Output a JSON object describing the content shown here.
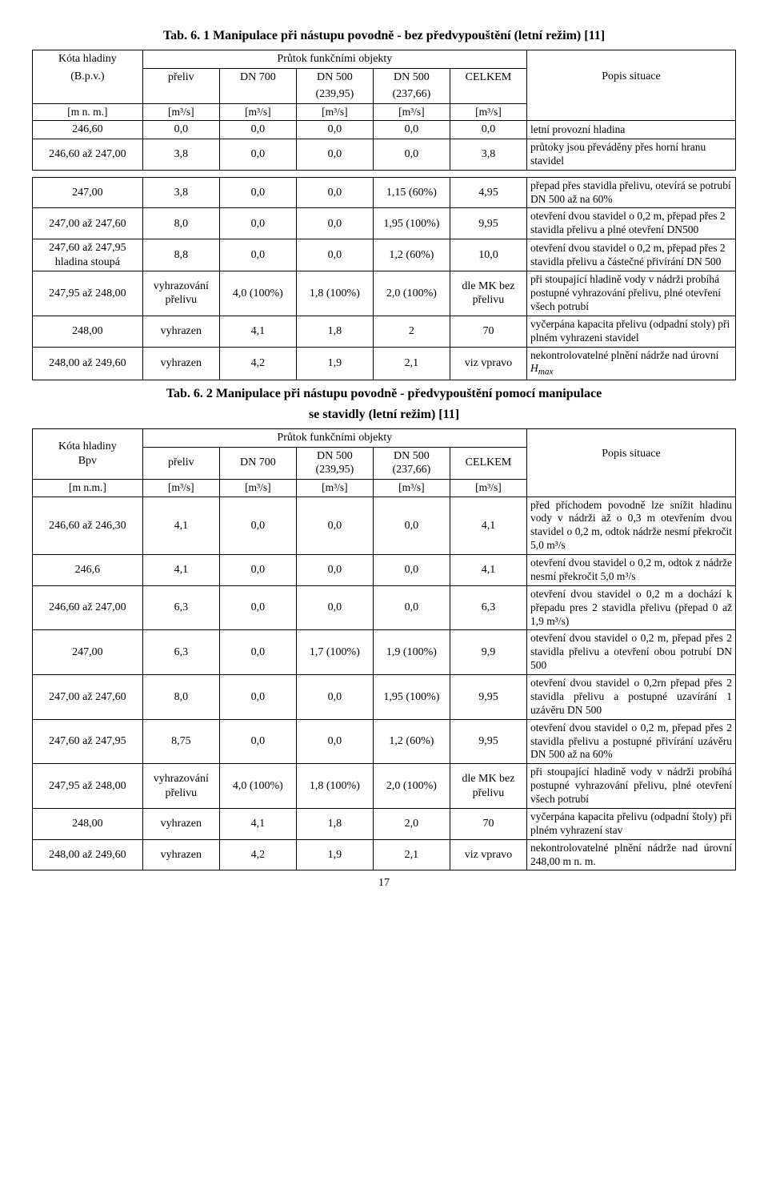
{
  "table1": {
    "title": "Tab. 6. 1 Manipulace při nástupu povodně - bez předvypouštění (letní režim) [11]",
    "header": {
      "kota_l1": "Kóta hladiny",
      "kota_l2": "(B.p.v.)",
      "flow_header": "Průtok funkčními objekty",
      "cols": [
        "přeliv",
        "DN 700",
        "DN 500",
        "DN 500",
        "CELKEM"
      ],
      "sub": [
        "",
        "",
        "(239,95)",
        "(237,66)",
        ""
      ],
      "popis": "Popis situace",
      "units_left": "[m n. m.]",
      "units": [
        "[m³/s]",
        "[m³/s]",
        "[m³/s]",
        "[m³/s]",
        "[m³/s]"
      ]
    },
    "r1": {
      "k": "246,60",
      "v": [
        "0,0",
        "0,0",
        "0,0",
        "0,0",
        "0,0"
      ],
      "d": "letní provozní hladina"
    },
    "r2": {
      "k": "246,60 až 247,00",
      "v": [
        "3,8",
        "0,0",
        "0,0",
        "0,0",
        "3,8"
      ],
      "d": "průtoky jsou převáděny přes horní hranu stavidel"
    },
    "r3": {
      "k": "247,00",
      "v": [
        "3,8",
        "0,0",
        "0,0",
        "1,15 (60%)",
        "4,95"
      ],
      "d": "přepad přes stavidla přelivu, otevírá se potrubí DN 500 až na 60%"
    },
    "r4": {
      "k": "247,00 až 247,60",
      "v": [
        "8,0",
        "0,0",
        "0,0",
        "1,95 (100%)",
        "9,95"
      ],
      "d": "otevření dvou stavidel o 0,2 m, přepad přes 2 stavidla přelivu a plné otevření DN500"
    },
    "r5": {
      "k": "247,60 až 247,95 hladina stoupá",
      "v": [
        "8,8",
        "0,0",
        "0,0",
        "1,2 (60%)",
        "10,0"
      ],
      "d": "otevření dvou stavidel o 0,2 m, přepad přes 2 stavidla přelivu a částečné přivírání DN 500"
    },
    "r6": {
      "k": "247,95 až 248,00",
      "v": [
        "vyhrazování přelivu",
        "4,0 (100%)",
        "1,8 (100%)",
        "2,0 (100%)",
        "dle MK bez přelivu"
      ],
      "d": "při stoupající hladině vody v nádrži probíhá postupné vyhrazování přelivu, plné otevření všech potrubí"
    },
    "r7": {
      "k": "248,00",
      "v": [
        "vyhrazen",
        "4,1",
        "1,8",
        "2",
        "70"
      ],
      "d": "vyčerpána kapacita přelivu (odpadní stoly) při plném vyhrazeni stavidel"
    },
    "r8": {
      "k": "248,00 až 249,60",
      "v": [
        "vyhrazen",
        "4,2",
        "1,9",
        "2,1",
        "viz vpravo"
      ],
      "d_html": "nekontrolovatelné plnění nádrže nad úrovní <span class='sub'>H<sub>max</sub></span>"
    }
  },
  "table2": {
    "title_l1": "Tab. 6. 2 Manipulace při nástupu povodně - předvypouštění pomocí manipulace",
    "title_l2": "se stavidly (letní režim) [11]",
    "header": {
      "kota_l1": "Kóta hladiny",
      "kota_l2": "Bpv",
      "flow_header": "Průtok funkčními objekty",
      "cols": [
        "přeliv",
        "DN 700",
        "DN 500",
        "DN 500",
        "CELKEM"
      ],
      "sub": [
        "",
        "",
        "(239,95)",
        "(237,66)",
        ""
      ],
      "popis": "Popis situace",
      "units_left": "[m n.m.]",
      "units": [
        "[m³/s]",
        "[m³/s]",
        "[m³/s]",
        "[m³/s]",
        "[m³/s]"
      ]
    },
    "r1": {
      "k": "246,60 až 246,30",
      "v": [
        "4,1",
        "0,0",
        "0,0",
        "0,0",
        "4,1"
      ],
      "d": "před příchodem povodně lze snížit hladinu vody v nádrži až o 0,3 m otevřením dvou stavidel o 0,2 m, odtok nádrže nesmí překročit 5,0 m³/s"
    },
    "r2": {
      "k": "246,6",
      "v": [
        "4,1",
        "0,0",
        "0,0",
        "0,0",
        "4,1"
      ],
      "d": "otevření dvou stavidel o 0,2 m, odtok z nádrže nesmí překročit 5,0 m³/s"
    },
    "r3": {
      "k": "246,60 až 247,00",
      "v": [
        "6,3",
        "0,0",
        "0,0",
        "0,0",
        "6,3"
      ],
      "d": "otevření dvou stavidel o 0,2 m a dochází k přepadu pres 2 stavidla přelivu (přepad 0 až 1,9 m³/s)"
    },
    "r4": {
      "k": "247,00",
      "v": [
        "6,3",
        "0,0",
        "1,7 (100%)",
        "1,9 (100%)",
        "9,9"
      ],
      "d": "otevření dvou stavidel o 0,2 m, přepad přes 2 stavidla přelivu a otevření obou potrubí DN 500"
    },
    "r5": {
      "k": "247,00 až 247,60",
      "v": [
        "8,0",
        "0,0",
        "0,0",
        "1,95 (100%)",
        "9,95"
      ],
      "d": "otevření dvou stavidel o 0,2rn přepad přes 2 stavidla přelivu a postupné uzavírání 1 uzávěru DN 500"
    },
    "r6": {
      "k": "247,60 až 247,95",
      "v": [
        "8,75",
        "0,0",
        "0,0",
        "1,2 (60%)",
        "9,95"
      ],
      "d": "otevření dvou stavidel o 0,2 m, přepad přes 2 stavidla přelivu a postupné přivírání uzávěru DN 500 až na 60%"
    },
    "r7": {
      "k": "247,95 až 248,00",
      "v": [
        "vyhrazování přelivu",
        "4,0 (100%)",
        "1,8 (100%)",
        "2,0 (100%)",
        "dle MK bez přelivu"
      ],
      "d": "při stoupající hladině vody v nádrži probíhá postupné vyhrazování přelivu, plné otevření všech potrubí"
    },
    "r8": {
      "k": "248,00",
      "v": [
        "vyhrazen",
        "4,1",
        "1,8",
        "2,0",
        "70"
      ],
      "d": "vyčerpána kapacita přelivu (odpadní štoly) při plném vyhrazení stav"
    },
    "r9": {
      "k": "248,00 až 249,60",
      "v": [
        "vyhrazen",
        "4,2",
        "1,9",
        "2,1",
        "viz vpravo"
      ],
      "d": "nekontrolovatelné plnění nádrže nad úrovní 248,00 m n. m."
    }
  },
  "pagenum": "17"
}
